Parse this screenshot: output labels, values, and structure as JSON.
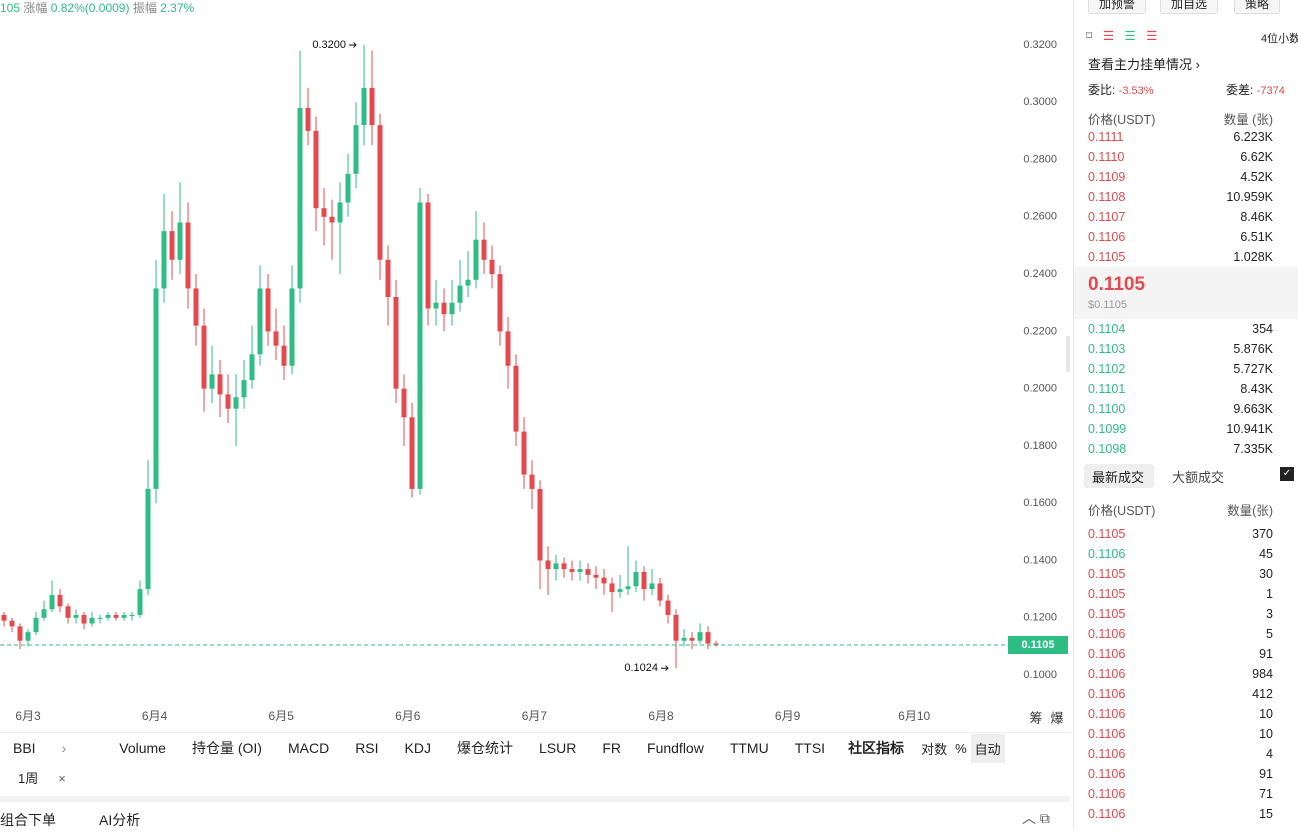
{
  "header": {
    "price_fragment": "105",
    "change_label": "涨幅",
    "change": "0.82%(0.0009)",
    "amplitude_label": "振幅",
    "amplitude": "2.37%"
  },
  "chart_data": {
    "type": "candlestick",
    "ylim": [
      0.0913,
      0.3322
    ],
    "yticks": [
      {
        "value": 0.1,
        "label": "0.1000"
      },
      {
        "value": 0.12,
        "label": "0.1200"
      },
      {
        "value": 0.14,
        "label": "0.1400"
      },
      {
        "value": 0.16,
        "label": "0.1600"
      },
      {
        "value": 0.18,
        "label": "0.1800"
      },
      {
        "value": 0.2,
        "label": "0.2000"
      },
      {
        "value": 0.22,
        "label": "0.2200"
      },
      {
        "value": 0.24,
        "label": "0.2400"
      },
      {
        "value": 0.26,
        "label": "0.2600"
      },
      {
        "value": 0.28,
        "label": "0.2800"
      },
      {
        "value": 0.3,
        "label": "0.3000"
      },
      {
        "value": 0.32,
        "label": "0.3200"
      }
    ],
    "xtick_labels": [
      "6月3",
      "6月4",
      "6月5",
      "6月6",
      "6月7",
      "6月8",
      "6月9",
      "6月10"
    ],
    "up_color": "#2ebd85",
    "down_color": "#e5484d",
    "candles": [
      [
        0.121,
        0.122,
        0.117,
        0.119
      ],
      [
        0.119,
        0.12,
        0.115,
        0.117
      ],
      [
        0.117,
        0.118,
        0.109,
        0.112
      ],
      [
        0.112,
        0.116,
        0.11,
        0.115
      ],
      [
        0.115,
        0.122,
        0.114,
        0.12
      ],
      [
        0.12,
        0.126,
        0.119,
        0.123
      ],
      [
        0.123,
        0.133,
        0.122,
        0.128
      ],
      [
        0.128,
        0.13,
        0.122,
        0.124
      ],
      [
        0.124,
        0.125,
        0.118,
        0.12
      ],
      [
        0.12,
        0.123,
        0.118,
        0.121
      ],
      [
        0.121,
        0.122,
        0.116,
        0.118
      ],
      [
        0.118,
        0.122,
        0.117,
        0.12
      ],
      [
        0.12,
        0.121,
        0.118,
        0.12
      ],
      [
        0.12,
        0.122,
        0.119,
        0.121
      ],
      [
        0.121,
        0.122,
        0.119,
        0.12
      ],
      [
        0.12,
        0.122,
        0.119,
        0.121
      ],
      [
        0.121,
        0.122,
        0.119,
        0.121
      ],
      [
        0.121,
        0.133,
        0.12,
        0.13
      ],
      [
        0.13,
        0.175,
        0.128,
        0.165
      ],
      [
        0.165,
        0.245,
        0.16,
        0.235
      ],
      [
        0.235,
        0.268,
        0.23,
        0.255
      ],
      [
        0.255,
        0.262,
        0.238,
        0.245
      ],
      [
        0.245,
        0.272,
        0.24,
        0.258
      ],
      [
        0.258,
        0.265,
        0.228,
        0.235
      ],
      [
        0.235,
        0.24,
        0.215,
        0.222
      ],
      [
        0.222,
        0.228,
        0.192,
        0.2
      ],
      [
        0.2,
        0.215,
        0.195,
        0.205
      ],
      [
        0.205,
        0.21,
        0.19,
        0.198
      ],
      [
        0.198,
        0.205,
        0.188,
        0.193
      ],
      [
        0.193,
        0.205,
        0.18,
        0.197
      ],
      [
        0.197,
        0.21,
        0.193,
        0.203
      ],
      [
        0.203,
        0.222,
        0.2,
        0.212
      ],
      [
        0.212,
        0.243,
        0.208,
        0.235
      ],
      [
        0.235,
        0.24,
        0.215,
        0.22
      ],
      [
        0.22,
        0.228,
        0.21,
        0.215
      ],
      [
        0.215,
        0.222,
        0.203,
        0.208
      ],
      [
        0.208,
        0.243,
        0.205,
        0.235
      ],
      [
        0.235,
        0.318,
        0.23,
        0.298
      ],
      [
        0.298,
        0.305,
        0.285,
        0.29
      ],
      [
        0.29,
        0.295,
        0.255,
        0.263
      ],
      [
        0.263,
        0.27,
        0.25,
        0.26
      ],
      [
        0.26,
        0.266,
        0.245,
        0.258
      ],
      [
        0.258,
        0.272,
        0.24,
        0.265
      ],
      [
        0.265,
        0.282,
        0.26,
        0.275
      ],
      [
        0.275,
        0.3,
        0.27,
        0.292
      ],
      [
        0.292,
        0.32,
        0.285,
        0.305
      ],
      [
        0.305,
        0.318,
        0.285,
        0.292
      ],
      [
        0.292,
        0.296,
        0.238,
        0.245
      ],
      [
        0.245,
        0.25,
        0.222,
        0.232
      ],
      [
        0.232,
        0.238,
        0.195,
        0.2
      ],
      [
        0.2,
        0.205,
        0.18,
        0.19
      ],
      [
        0.19,
        0.195,
        0.162,
        0.165
      ],
      [
        0.165,
        0.27,
        0.163,
        0.265
      ],
      [
        0.265,
        0.268,
        0.222,
        0.228
      ],
      [
        0.228,
        0.238,
        0.222,
        0.23
      ],
      [
        0.23,
        0.235,
        0.22,
        0.226
      ],
      [
        0.226,
        0.238,
        0.222,
        0.23
      ],
      [
        0.23,
        0.245,
        0.227,
        0.236
      ],
      [
        0.236,
        0.248,
        0.232,
        0.238
      ],
      [
        0.238,
        0.262,
        0.235,
        0.252
      ],
      [
        0.252,
        0.258,
        0.24,
        0.245
      ],
      [
        0.245,
        0.25,
        0.235,
        0.24
      ],
      [
        0.24,
        0.243,
        0.215,
        0.22
      ],
      [
        0.22,
        0.225,
        0.2,
        0.208
      ],
      [
        0.208,
        0.212,
        0.18,
        0.185
      ],
      [
        0.185,
        0.19,
        0.165,
        0.17
      ],
      [
        0.17,
        0.175,
        0.158,
        0.165
      ],
      [
        0.165,
        0.168,
        0.13,
        0.14
      ],
      [
        0.14,
        0.145,
        0.128,
        0.137
      ],
      [
        0.137,
        0.142,
        0.133,
        0.139
      ],
      [
        0.139,
        0.141,
        0.134,
        0.137
      ],
      [
        0.137,
        0.14,
        0.133,
        0.136
      ],
      [
        0.136,
        0.14,
        0.133,
        0.137
      ],
      [
        0.137,
        0.139,
        0.132,
        0.135
      ],
      [
        0.135,
        0.138,
        0.13,
        0.134
      ],
      [
        0.134,
        0.137,
        0.128,
        0.132
      ],
      [
        0.132,
        0.134,
        0.122,
        0.129
      ],
      [
        0.129,
        0.135,
        0.127,
        0.13
      ],
      [
        0.13,
        0.145,
        0.128,
        0.131
      ],
      [
        0.131,
        0.14,
        0.129,
        0.136
      ],
      [
        0.136,
        0.138,
        0.126,
        0.13
      ],
      [
        0.13,
        0.137,
        0.128,
        0.132
      ],
      [
        0.132,
        0.134,
        0.124,
        0.126
      ],
      [
        0.126,
        0.128,
        0.118,
        0.121
      ],
      [
        0.121,
        0.123,
        0.1024,
        0.112
      ],
      [
        0.112,
        0.116,
        0.11,
        0.113
      ],
      [
        0.113,
        0.115,
        0.109,
        0.112
      ],
      [
        0.112,
        0.118,
        0.111,
        0.115
      ],
      [
        0.115,
        0.117,
        0.109,
        0.111
      ],
      [
        0.111,
        0.112,
        0.11,
        0.1105
      ]
    ],
    "max_annotation": {
      "value": 0.32,
      "label": "0.3200",
      "candle": 45
    },
    "min_annotation": {
      "value": 0.1024,
      "label": "0.1024",
      "candle": 84
    },
    "last_price": 0.1105,
    "last_price_color": "#2ebd85",
    "side_labels": [
      "筹",
      "爆"
    ]
  },
  "toolbar": {
    "indicator": "BBI",
    "tabs": [
      "Volume",
      "持仓量 (OI)",
      "MACD",
      "RSI",
      "KDJ",
      "爆仓统计",
      "LSUR",
      "FR",
      "Fundflow",
      "TTMU",
      "TTSI"
    ],
    "community": "社区指标",
    "log": "对数",
    "percent": "%",
    "auto": "自动",
    "interval": "1周"
  },
  "bottom_bar": {
    "items": [
      "组合下单",
      "AI分析"
    ]
  },
  "side_panel": {
    "buttons": [
      "加预警",
      "加自选",
      "策略"
    ],
    "decimals": "4位小数",
    "main_orders": "查看主力挂单情况",
    "ratio_label": "委比:",
    "ratio": "-3.53%",
    "diff_label": "委差:",
    "diff": "-7374",
    "book_header": [
      "价格(USDT)",
      "数量 (张)"
    ],
    "asks": [
      [
        "0.1111",
        "6.223K"
      ],
      [
        "0.1110",
        "6.62K"
      ],
      [
        "0.1109",
        "4.52K"
      ],
      [
        "0.1108",
        "10.959K"
      ],
      [
        "0.1107",
        "8.46K"
      ],
      [
        "0.1106",
        "6.51K"
      ],
      [
        "0.1105",
        "1.028K"
      ]
    ],
    "mid_price": "0.1105",
    "mid_usd": "$0.1105",
    "bids": [
      [
        "0.1104",
        "354"
      ],
      [
        "0.1103",
        "5.876K"
      ],
      [
        "0.1102",
        "5.727K"
      ],
      [
        "0.1101",
        "8.43K"
      ],
      [
        "0.1100",
        "9.663K"
      ],
      [
        "0.1099",
        "10.941K"
      ],
      [
        "0.1098",
        "7.335K"
      ]
    ],
    "ask_color": "#e5484d",
    "bid_color": "#2ebd85",
    "trade_tabs": [
      "最新成交",
      "大额成交"
    ],
    "trade_header": [
      "价格(USDT)",
      "数量(张)"
    ],
    "trades": [
      {
        "price": "0.1105",
        "qty": "370",
        "color": "#e5484d"
      },
      {
        "price": "0.1106",
        "qty": "45",
        "color": "#2ebd85"
      },
      {
        "price": "0.1105",
        "qty": "30",
        "color": "#e5484d"
      },
      {
        "price": "0.1105",
        "qty": "1",
        "color": "#e5484d"
      },
      {
        "price": "0.1105",
        "qty": "3",
        "color": "#e5484d"
      },
      {
        "price": "0.1106",
        "qty": "5",
        "color": "#e5484d"
      },
      {
        "price": "0.1106",
        "qty": "91",
        "color": "#e5484d"
      },
      {
        "price": "0.1106",
        "qty": "984",
        "color": "#e5484d"
      },
      {
        "price": "0.1106",
        "qty": "412",
        "color": "#e5484d"
      },
      {
        "price": "0.1106",
        "qty": "10",
        "color": "#e5484d"
      },
      {
        "price": "0.1106",
        "qty": "10",
        "color": "#e5484d"
      },
      {
        "price": "0.1106",
        "qty": "4",
        "color": "#e5484d"
      },
      {
        "price": "0.1106",
        "qty": "91",
        "color": "#e5484d"
      },
      {
        "price": "0.1106",
        "qty": "71",
        "color": "#e5484d"
      },
      {
        "price": "0.1106",
        "qty": "15",
        "color": "#e5484d"
      }
    ]
  }
}
